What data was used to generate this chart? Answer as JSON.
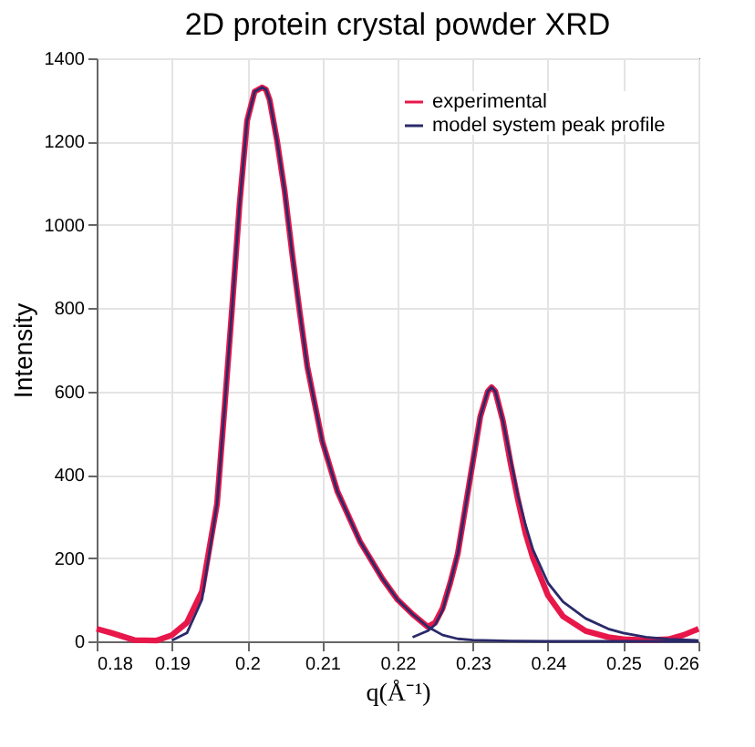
{
  "chart_data": {
    "type": "line",
    "title": "2D protein crystal powder XRD",
    "xlabel": "q(Å⁻¹)",
    "ylabel": "Intensity",
    "xlim": [
      0.18,
      0.26
    ],
    "xticks": [
      0.18,
      0.19,
      0.2,
      0.21,
      0.22,
      0.23,
      0.24,
      0.25,
      0.26
    ],
    "ylim": [
      0,
      1400
    ],
    "yticks": [
      0,
      200,
      400,
      600,
      800,
      1000,
      1200,
      1400
    ],
    "grid": true,
    "legend": "top right",
    "line_style": "solid",
    "marker": "none",
    "series": [
      {
        "name": "experimental",
        "color": "#e8174a",
        "x": [
          0.18,
          0.182,
          0.185,
          0.188,
          0.19,
          0.192,
          0.194,
          0.196,
          0.197,
          0.198,
          0.199,
          0.2,
          0.201,
          0.202,
          0.2025,
          0.203,
          0.204,
          0.205,
          0.206,
          0.207,
          0.208,
          0.21,
          0.212,
          0.215,
          0.218,
          0.22,
          0.222,
          0.224,
          0.225,
          0.226,
          0.227,
          0.228,
          0.229,
          0.23,
          0.231,
          0.232,
          0.2325,
          0.233,
          0.234,
          0.235,
          0.236,
          0.237,
          0.238,
          0.24,
          0.242,
          0.245,
          0.248,
          0.25,
          0.253,
          0.256,
          0.258,
          0.26
        ],
        "values": [
          30,
          20,
          3,
          2,
          15,
          45,
          120,
          330,
          560,
          800,
          1050,
          1250,
          1320,
          1330,
          1325,
          1300,
          1200,
          1080,
          930,
          790,
          660,
          480,
          360,
          240,
          150,
          100,
          65,
          35,
          45,
          80,
          140,
          210,
          320,
          430,
          540,
          600,
          610,
          600,
          530,
          430,
          340,
          260,
          200,
          110,
          60,
          25,
          10,
          5,
          3,
          5,
          15,
          30
        ]
      },
      {
        "name": "model system peak profile",
        "color": "#2a2a6a",
        "x": [
          0.19,
          0.192,
          0.194,
          0.196,
          0.197,
          0.198,
          0.199,
          0.2,
          0.201,
          0.202,
          0.2025,
          0.203,
          0.204,
          0.205,
          0.206,
          0.207,
          0.208,
          0.21,
          0.212,
          0.215,
          0.218,
          0.22,
          0.222,
          0.224,
          0.226,
          0.228,
          0.23,
          0.235,
          0.24,
          0.25,
          0.26
        ],
        "values": [
          2,
          20,
          100,
          330,
          560,
          800,
          1050,
          1250,
          1320,
          1330,
          1325,
          1300,
          1200,
          1080,
          930,
          790,
          660,
          480,
          360,
          240,
          150,
          100,
          65,
          35,
          15,
          6,
          3,
          1,
          0,
          0,
          0
        ]
      },
      {
        "color": "#2a2a6a",
        "x": [
          0.222,
          0.224,
          0.225,
          0.226,
          0.227,
          0.228,
          0.229,
          0.23,
          0.231,
          0.232,
          0.2325,
          0.233,
          0.234,
          0.235,
          0.236,
          0.237,
          0.238,
          0.24,
          0.242,
          0.245,
          0.248,
          0.25,
          0.253,
          0.256,
          0.26
        ],
        "values": [
          10,
          25,
          40,
          75,
          140,
          210,
          320,
          430,
          540,
          600,
          610,
          600,
          530,
          440,
          350,
          280,
          220,
          140,
          95,
          55,
          30,
          20,
          10,
          5,
          2
        ]
      }
    ]
  }
}
